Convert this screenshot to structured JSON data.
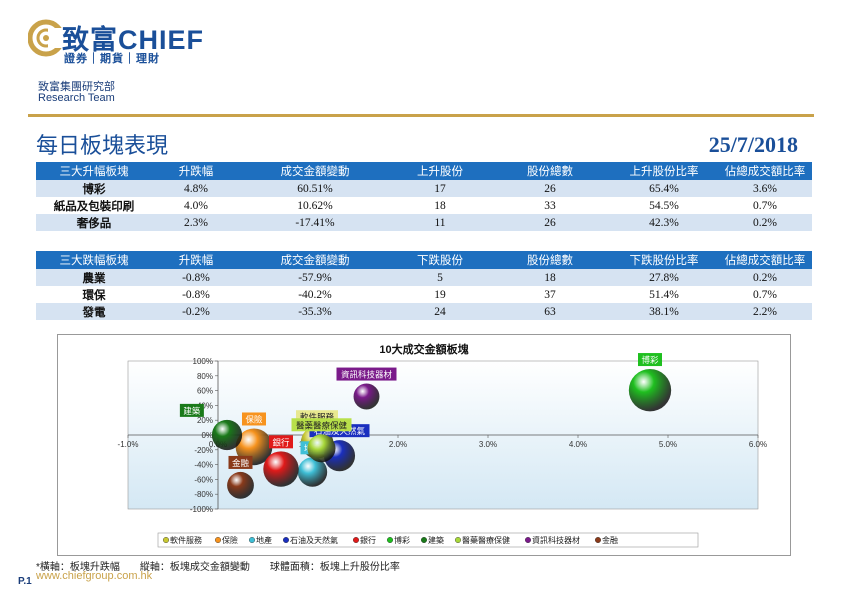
{
  "header": {
    "brand": "致富CHIEF",
    "tagline": "證券｜期貨｜理財",
    "department": "致富集團研究部",
    "team": "Research Team"
  },
  "page": {
    "title": "每日板塊表現",
    "date": "25/7/2018"
  },
  "top_table": {
    "headers": [
      "三大升幅板塊",
      "升跌幅",
      "成交金額變動",
      "上升股份",
      "股份總數",
      "上升股份比率",
      "佔總成交額比率"
    ],
    "rows": [
      [
        "博彩",
        "4.8%",
        "60.51%",
        "17",
        "26",
        "65.4%",
        "3.6%"
      ],
      [
        "紙品及包裝印刷",
        "4.0%",
        "10.62%",
        "18",
        "33",
        "54.5%",
        "0.7%"
      ],
      [
        "奢侈品",
        "2.3%",
        "-17.41%",
        "11",
        "26",
        "42.3%",
        "0.2%"
      ]
    ]
  },
  "bottom_table": {
    "headers": [
      "三大跌幅板塊",
      "升跌幅",
      "成交金額變動",
      "下跌股份",
      "股份總數",
      "下跌股份比率",
      "佔總成交額比率"
    ],
    "rows": [
      [
        "農業",
        "-0.8%",
        "-57.9%",
        "5",
        "18",
        "27.8%",
        "0.2%"
      ],
      [
        "環保",
        "-0.8%",
        "-40.2%",
        "19",
        "37",
        "51.4%",
        "0.7%"
      ],
      [
        "發電",
        "-0.2%",
        "-35.3%",
        "24",
        "63",
        "38.1%",
        "2.2%"
      ]
    ]
  },
  "chart_data": {
    "type": "scatter",
    "title": "10大成交金額板塊",
    "xlim": [
      -1.0,
      6.0
    ],
    "ylim": [
      -100,
      100
    ],
    "x_ticks": [
      "-1.0%",
      "0.0%",
      "1.0%",
      "2.0%",
      "3.0%",
      "4.0%",
      "5.0%",
      "6.0%"
    ],
    "y_ticks": [
      "100%",
      "80%",
      "60%",
      "40%",
      "20%",
      "0%",
      "-20%",
      "-40%",
      "-60%",
      "-80%",
      "-100%"
    ],
    "grid": false,
    "legend_position": "bottom",
    "series": [
      {
        "name": "軟件服務",
        "x": 1.1,
        "y": -10,
        "r": 0.75,
        "color": "#c8c832",
        "label_color": "#e8e890"
      },
      {
        "name": "保險",
        "x": 0.4,
        "y": -16,
        "r": 0.85,
        "color": "#f7931e",
        "label_color": "#f7931e"
      },
      {
        "name": "地產",
        "x": 1.05,
        "y": -50,
        "r": 0.68,
        "color": "#3fbfd6",
        "label_color": "#3fbfd6"
      },
      {
        "name": "石油及天然氣",
        "x": 1.35,
        "y": -28,
        "r": 0.72,
        "color": "#1a2fbf",
        "label_color": "#1a2fbf"
      },
      {
        "name": "銀行",
        "x": 0.7,
        "y": -46,
        "r": 0.82,
        "color": "#e01a1a",
        "label_color": "#e01a1a"
      },
      {
        "name": "博彩",
        "x": 4.8,
        "y": 60.51,
        "r": 0.98,
        "color": "#1fbf1f",
        "label_color": "#1fbf1f"
      },
      {
        "name": "建築",
        "x": 0.1,
        "y": 0,
        "r": 0.7,
        "color": "#1a7a1a",
        "label_color": "#1a7a1a"
      },
      {
        "name": "醫藥醫療保健",
        "x": 1.15,
        "y": -18,
        "r": 0.65,
        "color": "#a8d83a",
        "label_color": "#b8e04a"
      },
      {
        "name": "資訊科技器材",
        "x": 1.65,
        "y": 52,
        "r": 0.6,
        "color": "#7a1a8a",
        "label_color": "#7a1a8a"
      },
      {
        "name": "金融",
        "x": 0.25,
        "y": -68,
        "r": 0.62,
        "color": "#8a3a1a",
        "label_color": "#8a3a1a"
      }
    ]
  },
  "footnote": "*橫軸：板塊升跌幅　　縱軸：板塊成交金額變動　　球體面積：板塊上升股份比率",
  "website": "www.chiefgroup.com.hk",
  "page_number": "P.1"
}
